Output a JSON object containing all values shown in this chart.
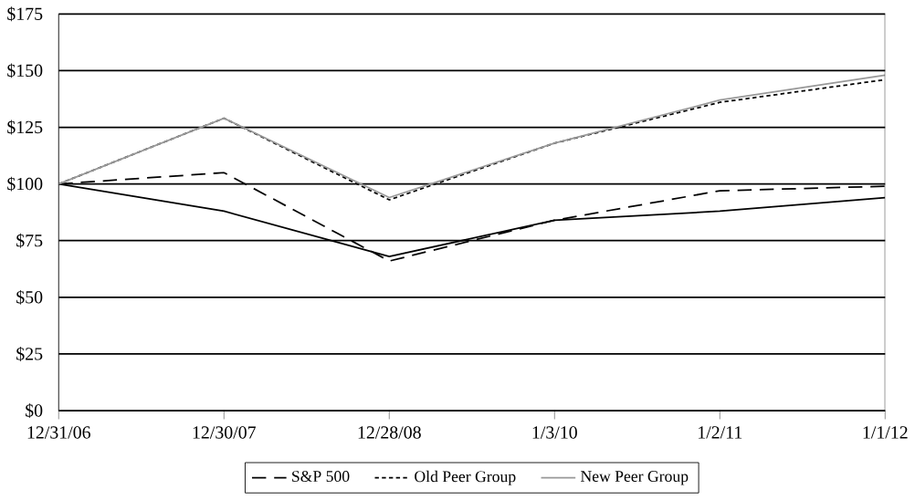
{
  "chart_data": {
    "type": "line",
    "categories": [
      "12/31/06",
      "12/30/07",
      "12/28/08",
      "1/3/10",
      "1/2/11",
      "1/1/12"
    ],
    "series": [
      {
        "color": "#000000",
        "line_style": "solid",
        "values": [
          100,
          88,
          68,
          84,
          88,
          94
        ]
      },
      {
        "name": "S&P 500",
        "color": "#000000",
        "line_style": "dashed",
        "values": [
          100,
          105,
          66,
          84,
          97,
          99
        ]
      },
      {
        "name": "Old Peer Group",
        "color": "#000000",
        "line_style": "dotted",
        "values": [
          100,
          129,
          93,
          118,
          136,
          146
        ]
      },
      {
        "name": "New Peer Group",
        "color": "#999999",
        "line_style": "solid",
        "values": [
          100,
          129,
          94,
          118,
          137,
          148
        ]
      }
    ],
    "ylim": [
      0,
      175
    ],
    "yticks": [
      {
        "value": 0,
        "label": "$0"
      },
      {
        "value": 25,
        "label": "$25"
      },
      {
        "value": 50,
        "label": "$50"
      },
      {
        "value": 75,
        "label": "$75"
      },
      {
        "value": 100,
        "label": "$100"
      },
      {
        "value": 125,
        "label": "$125"
      },
      {
        "value": 150,
        "label": "$150"
      },
      {
        "value": 175,
        "label": "$175"
      }
    ],
    "grid": "y",
    "legend": "bottom",
    "marker": "none"
  }
}
